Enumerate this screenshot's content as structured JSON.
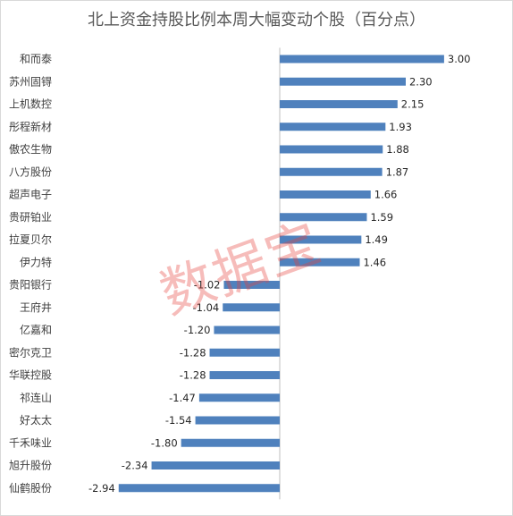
{
  "watermark": "数据宝",
  "chart_data": {
    "type": "bar",
    "orientation": "horizontal",
    "title": "北上资金持股比例本周大幅变动个股（百分点）",
    "xlabel": "",
    "ylabel": "",
    "categories": [
      "和而泰",
      "苏州固锝",
      "上机数控",
      "彤程新材",
      "傲农生物",
      "八方股份",
      "超声电子",
      "贵研铂业",
      "拉夏贝尔",
      "伊力特",
      "贵阳银行",
      "王府井",
      "亿嘉和",
      "密尔克卫",
      "华联控股",
      "祁连山",
      "好太太",
      "千禾味业",
      "旭升股份",
      "仙鹤股份"
    ],
    "values": [
      3.0,
      2.3,
      2.15,
      1.93,
      1.88,
      1.87,
      1.66,
      1.59,
      1.49,
      1.46,
      -1.02,
      -1.04,
      -1.2,
      -1.28,
      -1.28,
      -1.47,
      -1.54,
      -1.8,
      -2.34,
      -2.94
    ],
    "value_labels": [
      "3.00",
      "2.30",
      "2.15",
      "1.93",
      "1.88",
      "1.87",
      "1.66",
      "1.59",
      "1.49",
      "1.46",
      "-1.02",
      "-1.04",
      "-1.20",
      "-1.28",
      "-1.28",
      "-1.47",
      "-1.54",
      "-1.80",
      "-2.34",
      "-2.94"
    ],
    "bar_color": "#4f81bd",
    "grid": false,
    "legend": "none"
  }
}
